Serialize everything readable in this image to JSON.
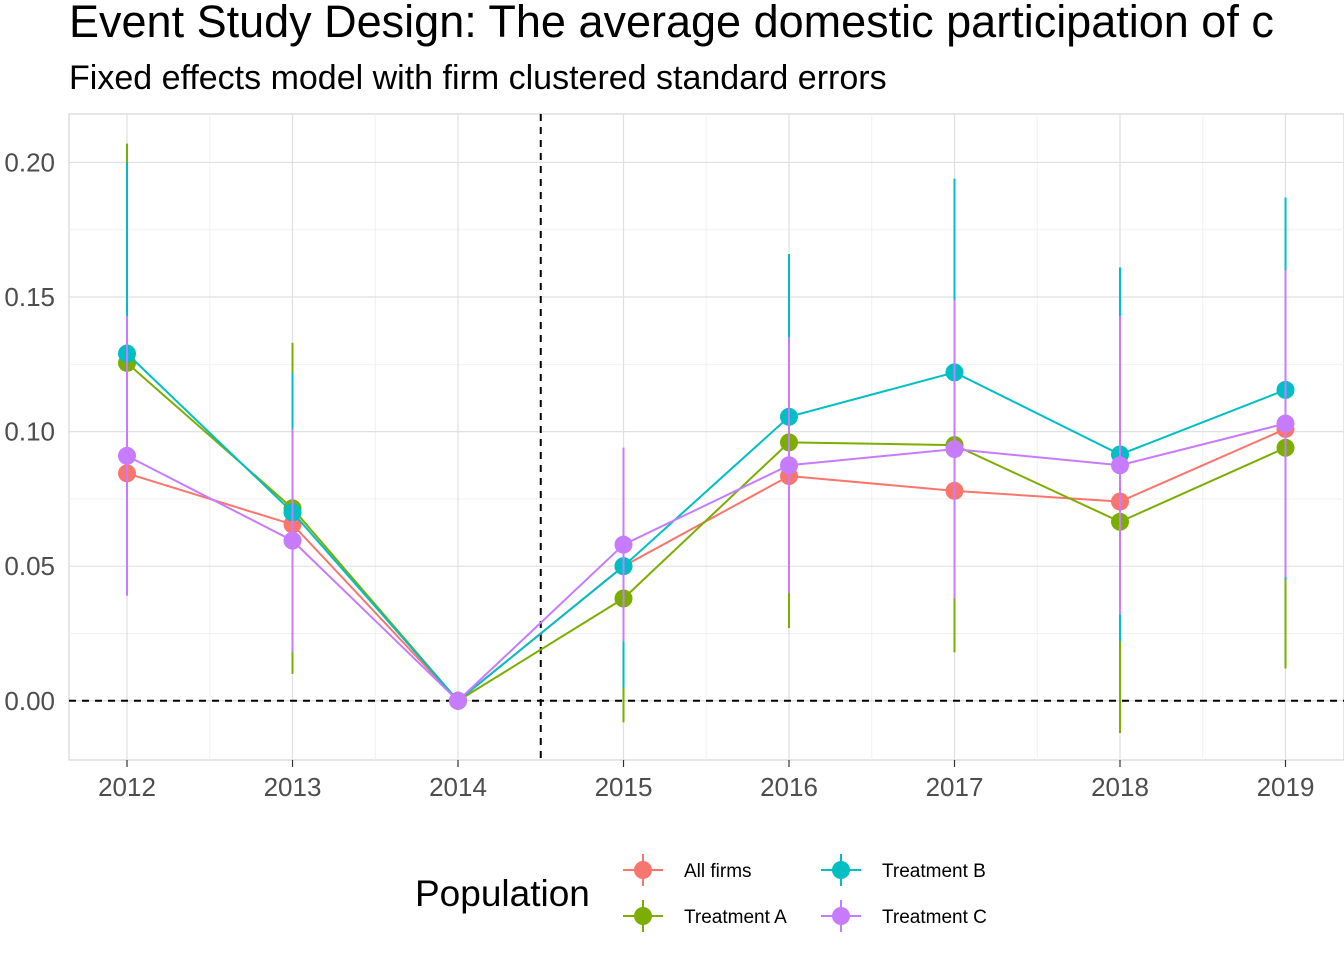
{
  "chart_data": {
    "type": "line",
    "title": "Event Study Design: The average domestic participation of c",
    "subtitle": "Fixed effects model with firm clustered standard errors",
    "xlabel": "",
    "ylabel": "",
    "categories": [
      "2012",
      "2013",
      "2014",
      "2015",
      "2016",
      "2017",
      "2018",
      "2019"
    ],
    "ylim": [
      -0.022,
      0.218
    ],
    "y_ticks": [
      0.0,
      0.05,
      0.1,
      0.15,
      0.2
    ],
    "y_tick_labels": [
      "0.00",
      "0.05",
      "0.10",
      "0.15",
      "0.20"
    ],
    "grid": true,
    "reference_lines": {
      "horizontal_y": 0.0,
      "vertical_between": [
        "2014",
        "2015"
      ]
    },
    "legend": {
      "title": "Population",
      "position": "bottom"
    },
    "series": [
      {
        "name": "All firms",
        "color": "#F8766D",
        "values": [
          0.0845,
          0.0655,
          0.0,
          0.05,
          0.0835,
          0.078,
          0.074,
          0.101
        ],
        "ci_low": [
          0.045,
          0.03,
          0.0,
          0.02,
          0.048,
          0.045,
          0.04,
          0.06
        ],
        "ci_high": [
          0.124,
          0.1,
          0.0,
          0.08,
          0.12,
          0.112,
          0.11,
          0.142
        ]
      },
      {
        "name": "Treatment A",
        "color": "#7CAE00",
        "values": [
          0.1255,
          0.0715,
          0.0,
          0.038,
          0.096,
          0.095,
          0.0665,
          0.094
        ],
        "ci_low": [
          0.044,
          0.01,
          0.0,
          -0.008,
          0.027,
          0.018,
          -0.012,
          0.012
        ],
        "ci_high": [
          0.207,
          0.133,
          0.0,
          0.085,
          0.166,
          0.172,
          0.146,
          0.176
        ]
      },
      {
        "name": "Treatment B",
        "color": "#00BFC4",
        "values": [
          0.129,
          0.07,
          0.0,
          0.05,
          0.1055,
          0.122,
          0.0915,
          0.1155
        ],
        "ci_low": [
          0.058,
          0.018,
          0.0,
          0.005,
          0.045,
          0.05,
          0.022,
          0.045
        ],
        "ci_high": [
          0.2,
          0.122,
          0.0,
          0.094,
          0.166,
          0.194,
          0.161,
          0.187
        ]
      },
      {
        "name": "Treatment C",
        "color": "#C77CFF",
        "values": [
          0.091,
          0.0595,
          0.0,
          0.058,
          0.0875,
          0.0935,
          0.0875,
          0.103
        ],
        "ci_low": [
          0.039,
          0.018,
          0.0,
          0.022,
          0.04,
          0.038,
          0.032,
          0.046
        ],
        "ci_high": [
          0.143,
          0.101,
          0.0,
          0.094,
          0.135,
          0.149,
          0.143,
          0.16
        ]
      }
    ]
  }
}
